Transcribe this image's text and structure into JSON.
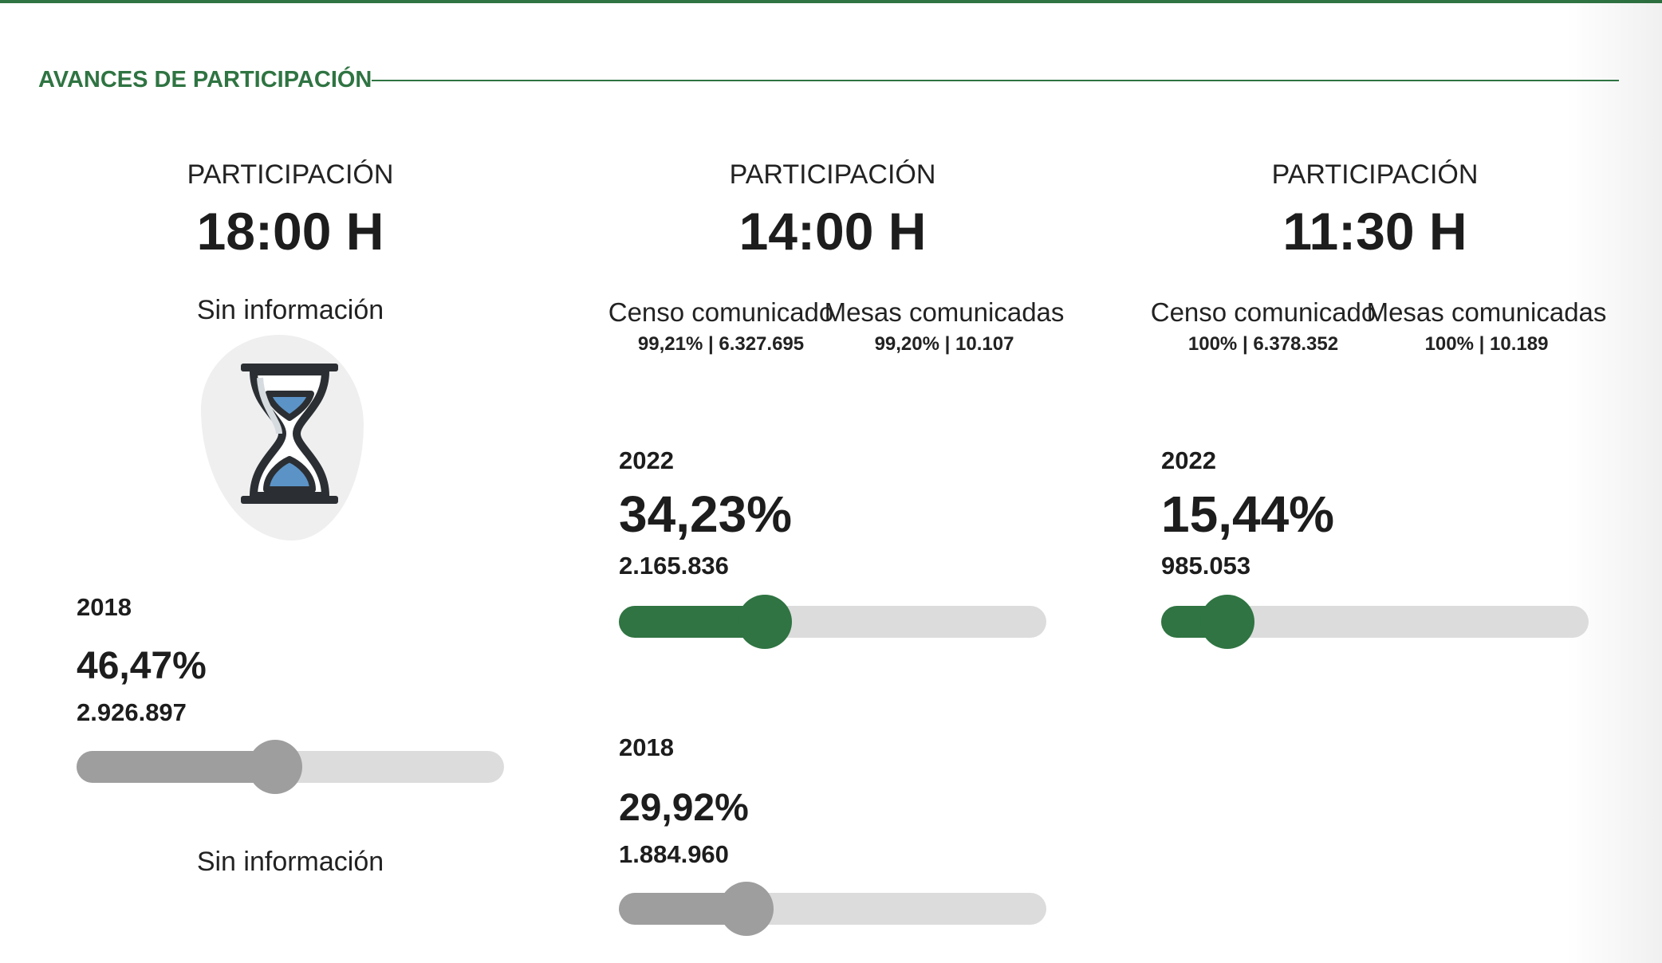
{
  "section": {
    "title": "AVANCES DE PARTICIPACIÓN"
  },
  "columns": [
    {
      "label": "PARTICIPACIÓN",
      "time": "18:00 H",
      "status_top": "Sin información",
      "icon": "hourglass-icon",
      "previous": {
        "year": "2018",
        "percent": "46,47%",
        "count": "2.926.897",
        "progress": 0.4647
      },
      "status_bottom": "Sin información"
    },
    {
      "label": "PARTICIPACIÓN",
      "time": "14:00 H",
      "census": {
        "title": "Censo comunicado",
        "value": "99,21% | 6.327.695"
      },
      "tables": {
        "title": "Mesas comunicadas",
        "value": "99,20% | 10.107"
      },
      "current": {
        "year": "2022",
        "percent": "34,23%",
        "count": "2.165.836",
        "progress": 0.3423
      },
      "previous": {
        "year": "2018",
        "percent": "29,92%",
        "count": "1.884.960",
        "progress": 0.2992
      }
    },
    {
      "label": "PARTICIPACIÓN",
      "time": "11:30 H",
      "census": {
        "title": "Censo comunicado",
        "value": "100% | 6.378.352"
      },
      "tables": {
        "title": "Mesas comunicadas",
        "value": "100% | 10.189"
      },
      "current": {
        "year": "2022",
        "percent": "15,44%",
        "count": "985.053",
        "progress": 0.1544
      }
    }
  ],
  "colors": {
    "accent": "#2f7442",
    "track": "#dcdcdc",
    "previous": "#9e9e9e",
    "hourglass_sand": "#5b93c7"
  }
}
